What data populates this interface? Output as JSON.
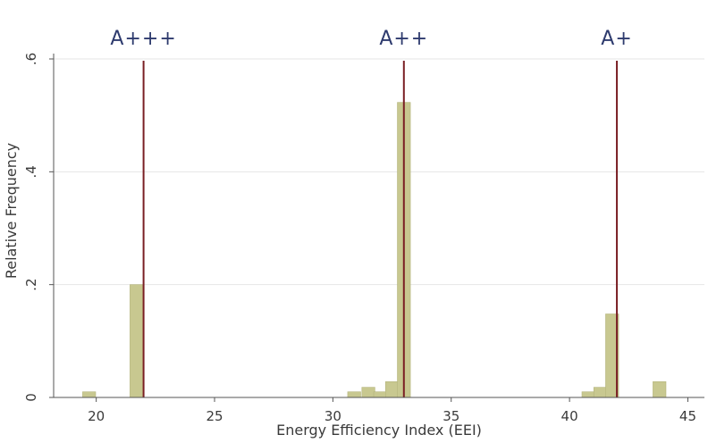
{
  "chart_data": {
    "type": "bar",
    "title": "",
    "xlabel": "Energy Efficiency Index (EEI)",
    "ylabel": "Relative Frequency",
    "xlim": [
      18.2,
      45.7
    ],
    "ylim": [
      0,
      0.6
    ],
    "x_ticks": [
      20,
      25,
      30,
      35,
      40,
      45
    ],
    "x_tick_labels": [
      "20",
      "25",
      "30",
      "35",
      "40",
      "45"
    ],
    "y_ticks": [
      0,
      0.2,
      0.4,
      0.6
    ],
    "y_tick_labels": [
      "0",
      ".2",
      ".4",
      ".6"
    ],
    "grid": true,
    "bin_width": 0.55,
    "bars": [
      {
        "x": 19.7,
        "y": 0.01
      },
      {
        "x": 21.7,
        "y": 0.2
      },
      {
        "x": 30.9,
        "y": 0.01
      },
      {
        "x": 31.5,
        "y": 0.018
      },
      {
        "x": 32.0,
        "y": 0.01
      },
      {
        "x": 32.5,
        "y": 0.028
      },
      {
        "x": 33.0,
        "y": 0.523
      },
      {
        "x": 40.8,
        "y": 0.01
      },
      {
        "x": 41.3,
        "y": 0.018
      },
      {
        "x": 41.8,
        "y": 0.148
      },
      {
        "x": 43.8,
        "y": 0.028
      }
    ],
    "class_thresholds": [
      {
        "label": "A+++",
        "x": 22
      },
      {
        "label": "A++",
        "x": 33
      },
      {
        "label": "A+",
        "x": 42
      }
    ],
    "bar_color": "#c8c890",
    "bar_edge_color": "#b4b47c",
    "threshold_color": "#7a1f24",
    "label_color": "#2e3b6e",
    "grid_color": "#e6e6e6"
  }
}
